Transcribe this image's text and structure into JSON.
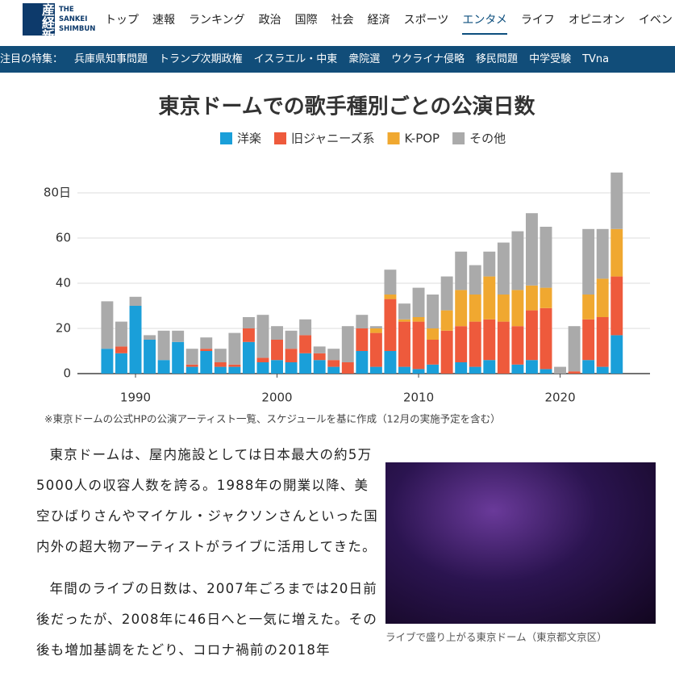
{
  "header": {
    "logo_kanji": "産経新聞",
    "logo_en": [
      "THE",
      "SANKEI",
      "SHIMBUN"
    ],
    "nav": [
      "トップ",
      "速報",
      "ランキング",
      "政治",
      "国際",
      "社会",
      "経済",
      "スポーツ",
      "エンタメ",
      "ライフ",
      "オピニオン",
      "イベント"
    ],
    "active": "エンタメ",
    "trending_label": "注目の特集：",
    "trending": [
      "兵庫県知事問題",
      "トランプ次期政権",
      "イスラエル・中東",
      "衆院選",
      "ウクライナ侵略",
      "移民問題",
      "中学受験",
      "TVna"
    ]
  },
  "chart_data": {
    "type": "stacked_bar",
    "title": "東京ドームでの歌手種別ごとの公演日数",
    "x": [
      1988,
      1989,
      1990,
      1991,
      1992,
      1993,
      1994,
      1995,
      1996,
      1997,
      1998,
      1999,
      2000,
      2001,
      2002,
      2003,
      2004,
      2005,
      2006,
      2007,
      2008,
      2009,
      2010,
      2011,
      2012,
      2013,
      2014,
      2015,
      2016,
      2017,
      2018,
      2019,
      2020,
      2021,
      2022,
      2023,
      2024
    ],
    "series": [
      {
        "name": "洋楽",
        "color": "#1a9fd9",
        "values": [
          11,
          9,
          30,
          15,
          6,
          14,
          3,
          10,
          3,
          3,
          14,
          5,
          6,
          5,
          9,
          6,
          3,
          0,
          10,
          3,
          10,
          3,
          2,
          4,
          0,
          5,
          3,
          6,
          0,
          4,
          6,
          2,
          0,
          0,
          6,
          3,
          17
        ]
      },
      {
        "name": "旧ジャニーズ系",
        "color": "#ee5a3c",
        "values": [
          0,
          3,
          0,
          0,
          0,
          0,
          1,
          1,
          2,
          1,
          6,
          2,
          9,
          6,
          8,
          3,
          3,
          5,
          10,
          15,
          23,
          20,
          21,
          11,
          19,
          16,
          20,
          18,
          23,
          17,
          22,
          27,
          0,
          1,
          18,
          22,
          26
        ]
      },
      {
        "name": "K-POP",
        "color": "#f0a830",
        "values": [
          0,
          0,
          0,
          0,
          0,
          0,
          0,
          0,
          0,
          0,
          0,
          0,
          0,
          0,
          0,
          0,
          0,
          0,
          0,
          2,
          2,
          1,
          2,
          5,
          9,
          16,
          12,
          19,
          12,
          16,
          11,
          9,
          0,
          0,
          11,
          17,
          21
        ]
      },
      {
        "name": "その他",
        "color": "#aaaaaa",
        "values": [
          21,
          11,
          4,
          2,
          13,
          5,
          7,
          5,
          6,
          14,
          5,
          19,
          6,
          8,
          7,
          3,
          5,
          16,
          6,
          1,
          11,
          7,
          13,
          15,
          15,
          17,
          13,
          11,
          23,
          26,
          32,
          27,
          3,
          20,
          29,
          22,
          25
        ]
      }
    ],
    "xlim": [
      1987.15,
      2026.35
    ],
    "xticks": [
      1990,
      2000,
      2010,
      2020
    ],
    "ylim": [
      0,
      90
    ],
    "yticks": [
      0,
      20,
      40,
      60,
      {
        "value": 80,
        "label": "80日"
      }
    ],
    "grid": true,
    "note": "※東京ドームの公式HPの公演アーティスト一覧、スケジュールを基に作成（12月の実施予定を含む）"
  },
  "article": {
    "paragraphs": [
      "東京ドームは、屋内施設としては日本最大の約5万5000人の収容人数を誇る。1988年の開業以降、美空ひばりさんやマイケル・ジャクソンさんといった国内外の超大物アーティストがライブに活用してきた。",
      "年間のライブの日数は、2007年ごろまでは20日前後だったが、2008年に46日へと一気に増えた。その後も増加基調をたどり、コロナ禍前の2018年"
    ],
    "caption": "ライブで盛り上がる東京ドーム（東京都文京区）"
  }
}
